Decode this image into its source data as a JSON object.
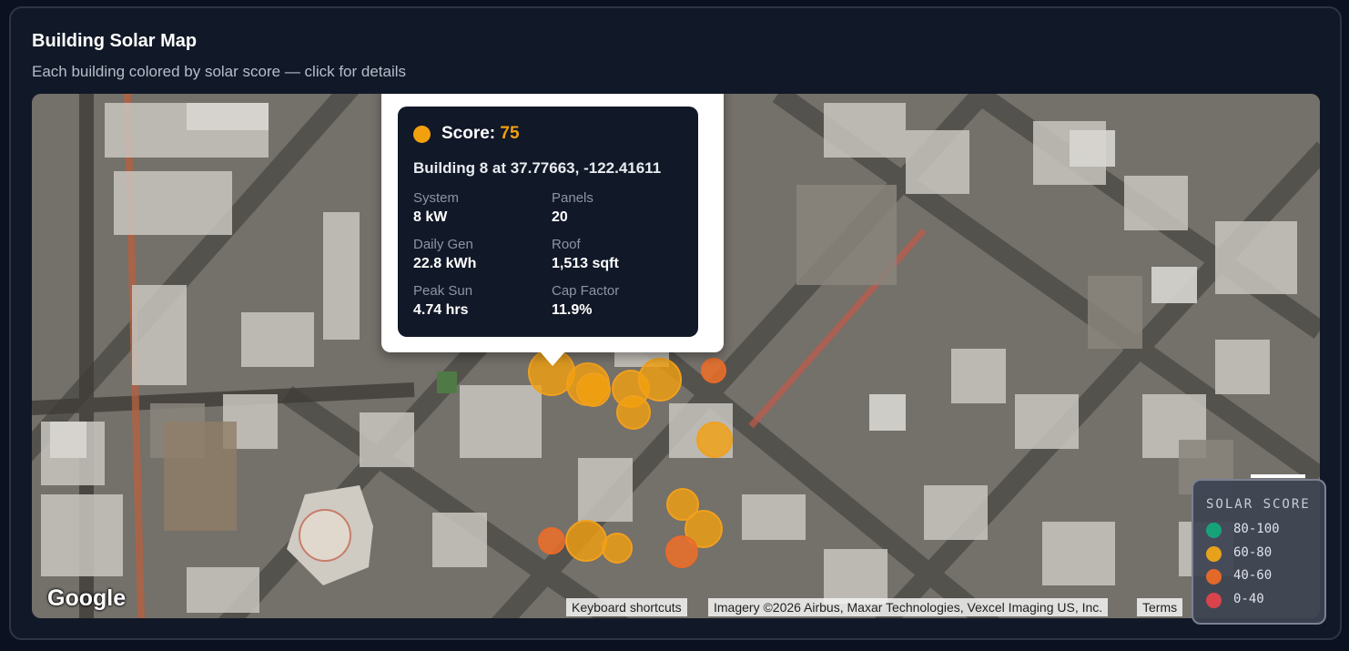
{
  "card": {
    "title": "Building Solar Map",
    "subtitle": "Each building colored by solar score — click for details"
  },
  "popup": {
    "score_label": "Score:",
    "score_value": "75",
    "building_line": "Building 8 at 37.77663, -122.41611",
    "stats": [
      {
        "label": "System",
        "value": "8 kW"
      },
      {
        "label": "Panels",
        "value": "20"
      },
      {
        "label": "Daily Gen",
        "value": "22.8 kWh"
      },
      {
        "label": "Roof",
        "value": "1,513 sqft"
      },
      {
        "label": "Peak Sun",
        "value": "4.74 hrs"
      },
      {
        "label": "Cap Factor",
        "value": "11.9%"
      }
    ]
  },
  "map": {
    "provider_logo": "Google",
    "attribution": {
      "shortcuts": "Keyboard shortcuts",
      "imagery": "Imagery ©2026 Airbus, Maxar Technologies, Vexcel Imaging US, Inc.",
      "terms": "Terms"
    }
  },
  "legend": {
    "title": "SOLAR SCORE",
    "items": [
      {
        "label": "80-100",
        "color": "#16a37a"
      },
      {
        "label": "60-80",
        "color": "#e8a11a"
      },
      {
        "label": "40-60",
        "color": "#e2692a"
      },
      {
        "label": "0-40",
        "color": "#d9434b"
      }
    ]
  },
  "colors": {
    "score_60_80": "#f2a00e",
    "score_40_60": "#ef7a2a",
    "background": "#0b1120",
    "card": "#111827"
  }
}
